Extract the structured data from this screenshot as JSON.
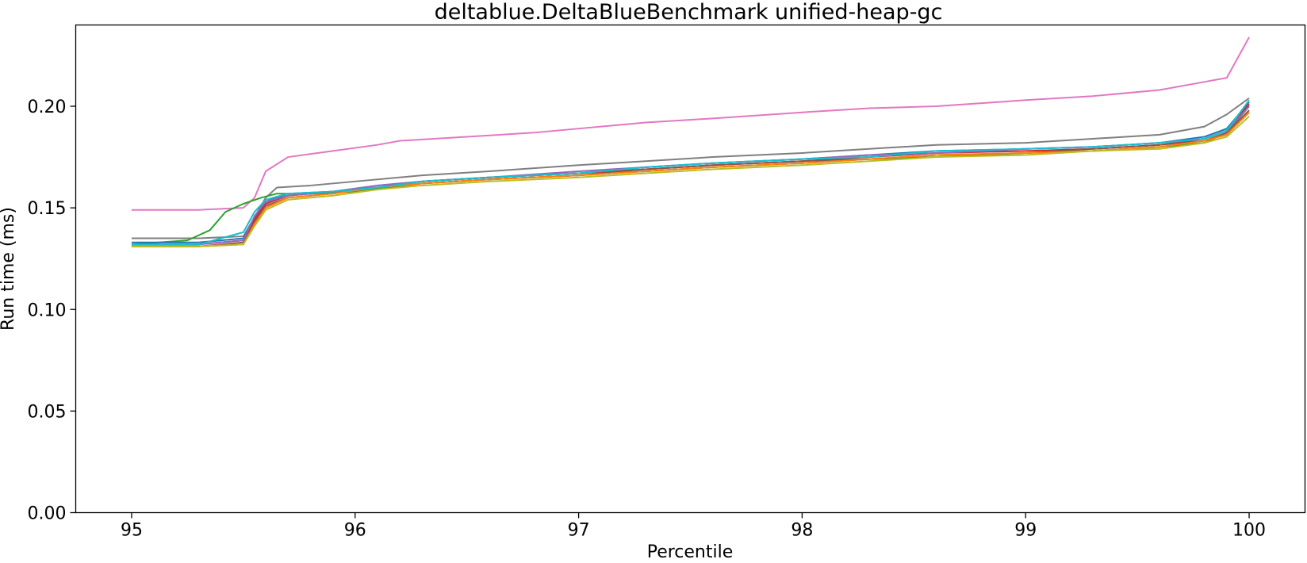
{
  "chart_data": {
    "type": "line",
    "title": "deltablue.DeltaBlueBenchmark unified-heap-gc",
    "xlabel": "Percentile",
    "ylabel": "Run time (ms)",
    "xlim": [
      94.75,
      100.25
    ],
    "ylim": [
      0.0,
      0.24
    ],
    "xticks": [
      95,
      96,
      97,
      98,
      99,
      100
    ],
    "yticks": [
      0.0,
      0.05,
      0.1,
      0.15,
      0.2
    ],
    "xtick_labels": [
      "95",
      "96",
      "97",
      "98",
      "99",
      "100"
    ],
    "ytick_labels": [
      "0.00",
      "0.05",
      "0.10",
      "0.15",
      "0.20"
    ],
    "grid": false,
    "legend": "none",
    "series": [
      {
        "color": "#e377c2",
        "x": [
          95.0,
          95.3,
          95.5,
          95.55,
          95.6,
          95.7,
          95.9,
          96.1,
          96.2,
          96.5,
          96.8,
          97.0,
          97.3,
          97.6,
          98.0,
          98.3,
          98.6,
          99.0,
          99.3,
          99.6,
          99.75,
          99.9,
          100.0
        ],
        "y": [
          0.149,
          0.149,
          0.15,
          0.155,
          0.168,
          0.175,
          0.178,
          0.181,
          0.183,
          0.185,
          0.187,
          0.189,
          0.192,
          0.194,
          0.197,
          0.199,
          0.2,
          0.203,
          0.205,
          0.208,
          0.211,
          0.214,
          0.234
        ]
      },
      {
        "color": "#7f7f7f",
        "x": [
          95.0,
          95.3,
          95.5,
          95.6,
          95.65,
          95.8,
          96.0,
          96.3,
          96.6,
          97.0,
          97.3,
          97.6,
          98.0,
          98.3,
          98.6,
          99.0,
          99.3,
          99.6,
          99.8,
          99.9,
          100.0
        ],
        "y": [
          0.135,
          0.135,
          0.136,
          0.155,
          0.16,
          0.161,
          0.163,
          0.166,
          0.168,
          0.171,
          0.173,
          0.175,
          0.177,
          0.179,
          0.181,
          0.182,
          0.184,
          0.186,
          0.19,
          0.196,
          0.204
        ]
      },
      {
        "color": "#2ca02c",
        "x": [
          95.0,
          95.25,
          95.35,
          95.42,
          95.5,
          95.58,
          95.65,
          95.8,
          96.0,
          96.3,
          96.6,
          97.0,
          97.3,
          97.6,
          98.0,
          98.3,
          98.6,
          99.0,
          99.3,
          99.6,
          99.8,
          99.9,
          100.0
        ],
        "y": [
          0.132,
          0.134,
          0.139,
          0.148,
          0.152,
          0.155,
          0.157,
          0.157,
          0.158,
          0.162,
          0.164,
          0.166,
          0.168,
          0.17,
          0.172,
          0.174,
          0.175,
          0.177,
          0.178,
          0.18,
          0.182,
          0.187,
          0.2
        ]
      },
      {
        "color": "#1f77b4",
        "x": [
          95.0,
          95.3,
          95.5,
          95.55,
          95.6,
          95.7,
          95.9,
          96.1,
          96.3,
          96.6,
          97.0,
          97.3,
          97.6,
          98.0,
          98.3,
          98.6,
          99.0,
          99.3,
          99.6,
          99.8,
          99.9,
          100.0
        ],
        "y": [
          0.133,
          0.133,
          0.135,
          0.145,
          0.153,
          0.157,
          0.158,
          0.161,
          0.163,
          0.165,
          0.167,
          0.17,
          0.172,
          0.174,
          0.176,
          0.178,
          0.179,
          0.18,
          0.182,
          0.185,
          0.189,
          0.202
        ]
      },
      {
        "color": "#d62728",
        "x": [
          95.0,
          95.3,
          95.5,
          95.55,
          95.6,
          95.7,
          95.9,
          96.1,
          96.3,
          96.6,
          97.0,
          97.3,
          97.6,
          98.0,
          98.3,
          98.6,
          99.0,
          99.3,
          99.6,
          99.8,
          99.9,
          100.0
        ],
        "y": [
          0.132,
          0.132,
          0.134,
          0.144,
          0.152,
          0.156,
          0.158,
          0.16,
          0.163,
          0.165,
          0.167,
          0.169,
          0.171,
          0.173,
          0.175,
          0.177,
          0.178,
          0.179,
          0.181,
          0.184,
          0.188,
          0.201
        ]
      },
      {
        "color": "#8c564b",
        "x": [
          95.0,
          95.3,
          95.5,
          95.55,
          95.6,
          95.7,
          95.9,
          96.1,
          96.3,
          96.6,
          97.0,
          97.3,
          97.6,
          98.0,
          98.3,
          98.6,
          99.0,
          99.3,
          99.6,
          99.8,
          99.9,
          100.0
        ],
        "y": [
          0.131,
          0.131,
          0.133,
          0.143,
          0.151,
          0.155,
          0.157,
          0.16,
          0.162,
          0.164,
          0.166,
          0.169,
          0.171,
          0.173,
          0.174,
          0.176,
          0.177,
          0.179,
          0.181,
          0.183,
          0.187,
          0.198
        ]
      },
      {
        "color": "#9467bd",
        "x": [
          95.0,
          95.3,
          95.5,
          95.55,
          95.6,
          95.7,
          95.9,
          96.1,
          96.3,
          96.6,
          97.0,
          97.3,
          97.6,
          98.0,
          98.3,
          98.6,
          99.0,
          99.3,
          99.6,
          99.8,
          99.9,
          100.0
        ],
        "y": [
          0.132,
          0.132,
          0.134,
          0.146,
          0.153,
          0.156,
          0.158,
          0.161,
          0.163,
          0.165,
          0.168,
          0.17,
          0.172,
          0.174,
          0.176,
          0.177,
          0.179,
          0.18,
          0.182,
          0.184,
          0.188,
          0.2
        ]
      },
      {
        "color": "#ff7f0e",
        "x": [
          95.0,
          95.3,
          95.5,
          95.55,
          95.6,
          95.7,
          95.9,
          96.1,
          96.3,
          96.6,
          97.0,
          97.3,
          97.6,
          98.0,
          98.3,
          98.6,
          99.0,
          99.3,
          99.6,
          99.8,
          99.9,
          100.0
        ],
        "y": [
          0.131,
          0.131,
          0.132,
          0.142,
          0.15,
          0.155,
          0.157,
          0.16,
          0.162,
          0.164,
          0.166,
          0.168,
          0.17,
          0.172,
          0.174,
          0.176,
          0.177,
          0.178,
          0.18,
          0.183,
          0.186,
          0.197
        ]
      },
      {
        "color": "#bcbd22",
        "x": [
          95.0,
          95.3,
          95.5,
          95.55,
          95.6,
          95.7,
          95.9,
          96.1,
          96.3,
          96.6,
          97.0,
          97.3,
          97.6,
          98.0,
          98.3,
          98.6,
          99.0,
          99.3,
          99.6,
          99.8,
          99.9,
          100.0
        ],
        "y": [
          0.131,
          0.131,
          0.132,
          0.141,
          0.149,
          0.154,
          0.156,
          0.159,
          0.161,
          0.163,
          0.165,
          0.167,
          0.169,
          0.171,
          0.173,
          0.175,
          0.176,
          0.178,
          0.179,
          0.182,
          0.185,
          0.195
        ]
      },
      {
        "color": "#17becf",
        "x": [
          95.0,
          95.3,
          95.5,
          95.55,
          95.6,
          95.7,
          95.9,
          96.1,
          96.3,
          96.6,
          97.0,
          97.3,
          97.6,
          98.0,
          98.3,
          98.6,
          99.0,
          99.3,
          99.6,
          99.8,
          99.9,
          100.0
        ],
        "y": [
          0.132,
          0.132,
          0.138,
          0.148,
          0.154,
          0.157,
          0.158,
          0.16,
          0.163,
          0.165,
          0.167,
          0.17,
          0.172,
          0.174,
          0.175,
          0.178,
          0.179,
          0.18,
          0.182,
          0.184,
          0.188,
          0.203
        ]
      }
    ]
  }
}
